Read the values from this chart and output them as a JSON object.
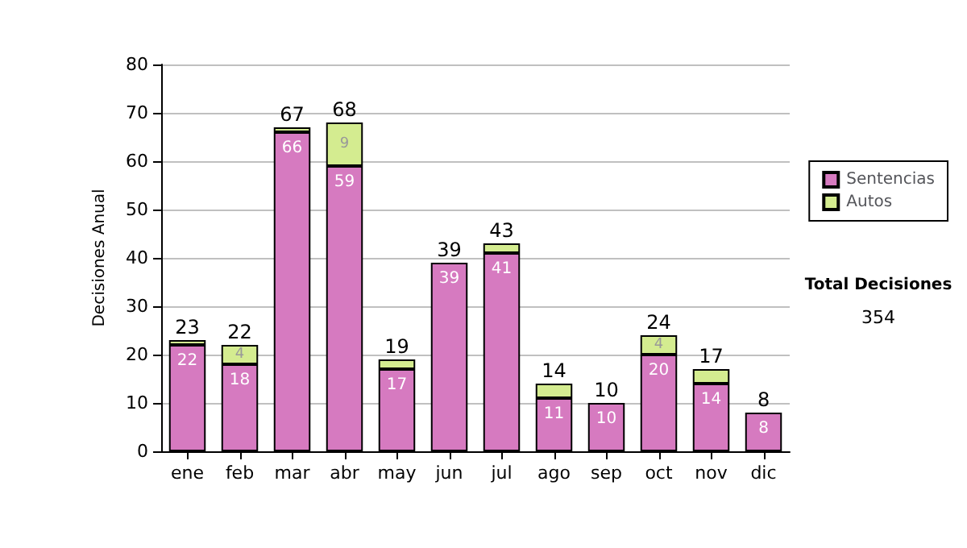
{
  "chart_data": {
    "type": "bar",
    "ylabel": "Decisiones Anual",
    "categories": [
      "ene",
      "feb",
      "mar",
      "abr",
      "may",
      "jun",
      "jul",
      "ago",
      "sep",
      "oct",
      "nov",
      "dic"
    ],
    "stacked": true,
    "series": [
      {
        "name": "Sentencias",
        "color": "#d67ac0",
        "values": [
          22,
          18,
          66,
          59,
          17,
          39,
          41,
          11,
          10,
          20,
          14,
          8
        ],
        "value_labels": [
          "22",
          "18",
          "66",
          "59",
          "17",
          "39",
          "41",
          "11",
          "10",
          "20",
          "14",
          "8"
        ]
      },
      {
        "name": "Autos",
        "color": "#d4ec90",
        "values": [
          1,
          4,
          1,
          9,
          2,
          0,
          2,
          3,
          0,
          4,
          3,
          0
        ],
        "value_labels": [
          null,
          "4",
          null,
          "9",
          null,
          null,
          null,
          null,
          null,
          "4",
          null,
          null
        ]
      }
    ],
    "totals": [
      "23",
      "22",
      "67",
      "68",
      "19",
      "39",
      "43",
      "14",
      "10",
      "24",
      "17",
      "8"
    ],
    "ylim": [
      0,
      80
    ],
    "yticks": [
      0,
      10,
      20,
      30,
      40,
      50,
      60,
      70,
      80
    ],
    "grid": "y",
    "legend": "right",
    "annotations": [
      "Total Decisiones",
      "354"
    ]
  }
}
